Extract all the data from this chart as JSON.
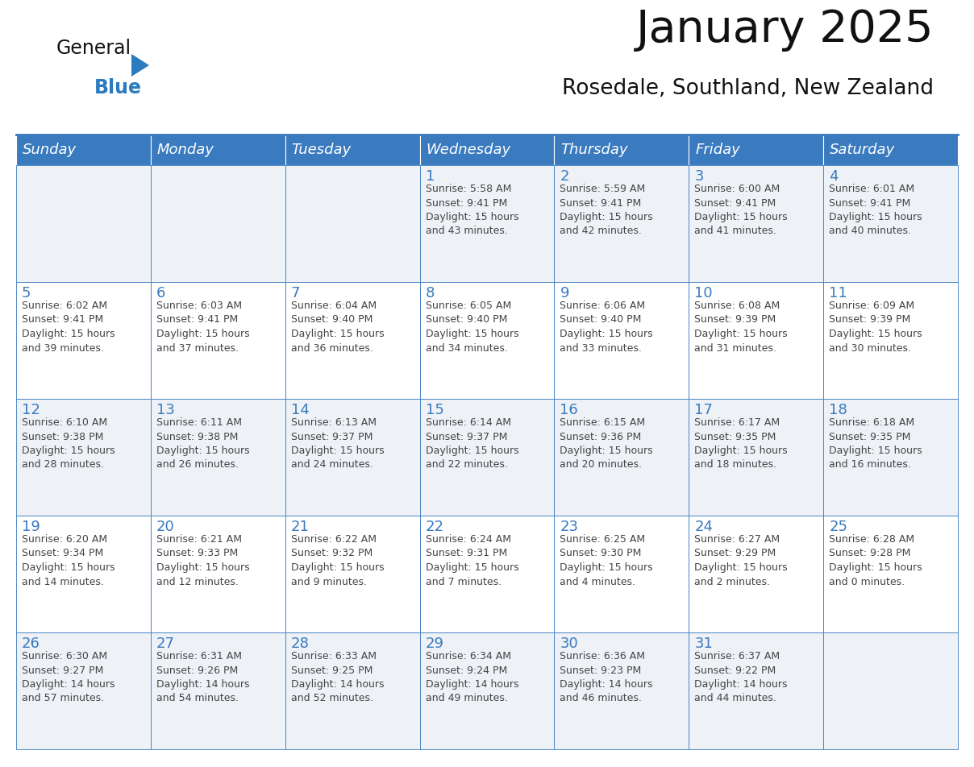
{
  "title": "January 2025",
  "subtitle": "Rosedale, Southland, New Zealand",
  "days_of_week": [
    "Sunday",
    "Monday",
    "Tuesday",
    "Wednesday",
    "Thursday",
    "Friday",
    "Saturday"
  ],
  "header_bg": "#3a7abf",
  "header_text": "#ffffff",
  "cell_bg_odd": "#eef2f7",
  "cell_bg_even": "#ffffff",
  "border_color": "#3a7abf",
  "day_number_color": "#3a7abf",
  "text_color": "#444444",
  "title_color": "#111111",
  "logo_text_color": "#111111",
  "logo_blue_color": "#2b7bbf",
  "calendar_data": [
    [
      {
        "day": null,
        "info": ""
      },
      {
        "day": null,
        "info": ""
      },
      {
        "day": null,
        "info": ""
      },
      {
        "day": 1,
        "info": "Sunrise: 5:58 AM\nSunset: 9:41 PM\nDaylight: 15 hours\nand 43 minutes."
      },
      {
        "day": 2,
        "info": "Sunrise: 5:59 AM\nSunset: 9:41 PM\nDaylight: 15 hours\nand 42 minutes."
      },
      {
        "day": 3,
        "info": "Sunrise: 6:00 AM\nSunset: 9:41 PM\nDaylight: 15 hours\nand 41 minutes."
      },
      {
        "day": 4,
        "info": "Sunrise: 6:01 AM\nSunset: 9:41 PM\nDaylight: 15 hours\nand 40 minutes."
      }
    ],
    [
      {
        "day": 5,
        "info": "Sunrise: 6:02 AM\nSunset: 9:41 PM\nDaylight: 15 hours\nand 39 minutes."
      },
      {
        "day": 6,
        "info": "Sunrise: 6:03 AM\nSunset: 9:41 PM\nDaylight: 15 hours\nand 37 minutes."
      },
      {
        "day": 7,
        "info": "Sunrise: 6:04 AM\nSunset: 9:40 PM\nDaylight: 15 hours\nand 36 minutes."
      },
      {
        "day": 8,
        "info": "Sunrise: 6:05 AM\nSunset: 9:40 PM\nDaylight: 15 hours\nand 34 minutes."
      },
      {
        "day": 9,
        "info": "Sunrise: 6:06 AM\nSunset: 9:40 PM\nDaylight: 15 hours\nand 33 minutes."
      },
      {
        "day": 10,
        "info": "Sunrise: 6:08 AM\nSunset: 9:39 PM\nDaylight: 15 hours\nand 31 minutes."
      },
      {
        "day": 11,
        "info": "Sunrise: 6:09 AM\nSunset: 9:39 PM\nDaylight: 15 hours\nand 30 minutes."
      }
    ],
    [
      {
        "day": 12,
        "info": "Sunrise: 6:10 AM\nSunset: 9:38 PM\nDaylight: 15 hours\nand 28 minutes."
      },
      {
        "day": 13,
        "info": "Sunrise: 6:11 AM\nSunset: 9:38 PM\nDaylight: 15 hours\nand 26 minutes."
      },
      {
        "day": 14,
        "info": "Sunrise: 6:13 AM\nSunset: 9:37 PM\nDaylight: 15 hours\nand 24 minutes."
      },
      {
        "day": 15,
        "info": "Sunrise: 6:14 AM\nSunset: 9:37 PM\nDaylight: 15 hours\nand 22 minutes."
      },
      {
        "day": 16,
        "info": "Sunrise: 6:15 AM\nSunset: 9:36 PM\nDaylight: 15 hours\nand 20 minutes."
      },
      {
        "day": 17,
        "info": "Sunrise: 6:17 AM\nSunset: 9:35 PM\nDaylight: 15 hours\nand 18 minutes."
      },
      {
        "day": 18,
        "info": "Sunrise: 6:18 AM\nSunset: 9:35 PM\nDaylight: 15 hours\nand 16 minutes."
      }
    ],
    [
      {
        "day": 19,
        "info": "Sunrise: 6:20 AM\nSunset: 9:34 PM\nDaylight: 15 hours\nand 14 minutes."
      },
      {
        "day": 20,
        "info": "Sunrise: 6:21 AM\nSunset: 9:33 PM\nDaylight: 15 hours\nand 12 minutes."
      },
      {
        "day": 21,
        "info": "Sunrise: 6:22 AM\nSunset: 9:32 PM\nDaylight: 15 hours\nand 9 minutes."
      },
      {
        "day": 22,
        "info": "Sunrise: 6:24 AM\nSunset: 9:31 PM\nDaylight: 15 hours\nand 7 minutes."
      },
      {
        "day": 23,
        "info": "Sunrise: 6:25 AM\nSunset: 9:30 PM\nDaylight: 15 hours\nand 4 minutes."
      },
      {
        "day": 24,
        "info": "Sunrise: 6:27 AM\nSunset: 9:29 PM\nDaylight: 15 hours\nand 2 minutes."
      },
      {
        "day": 25,
        "info": "Sunrise: 6:28 AM\nSunset: 9:28 PM\nDaylight: 15 hours\nand 0 minutes."
      }
    ],
    [
      {
        "day": 26,
        "info": "Sunrise: 6:30 AM\nSunset: 9:27 PM\nDaylight: 14 hours\nand 57 minutes."
      },
      {
        "day": 27,
        "info": "Sunrise: 6:31 AM\nSunset: 9:26 PM\nDaylight: 14 hours\nand 54 minutes."
      },
      {
        "day": 28,
        "info": "Sunrise: 6:33 AM\nSunset: 9:25 PM\nDaylight: 14 hours\nand 52 minutes."
      },
      {
        "day": 29,
        "info": "Sunrise: 6:34 AM\nSunset: 9:24 PM\nDaylight: 14 hours\nand 49 minutes."
      },
      {
        "day": 30,
        "info": "Sunrise: 6:36 AM\nSunset: 9:23 PM\nDaylight: 14 hours\nand 46 minutes."
      },
      {
        "day": 31,
        "info": "Sunrise: 6:37 AM\nSunset: 9:22 PM\nDaylight: 14 hours\nand 44 minutes."
      },
      {
        "day": null,
        "info": ""
      }
    ]
  ]
}
